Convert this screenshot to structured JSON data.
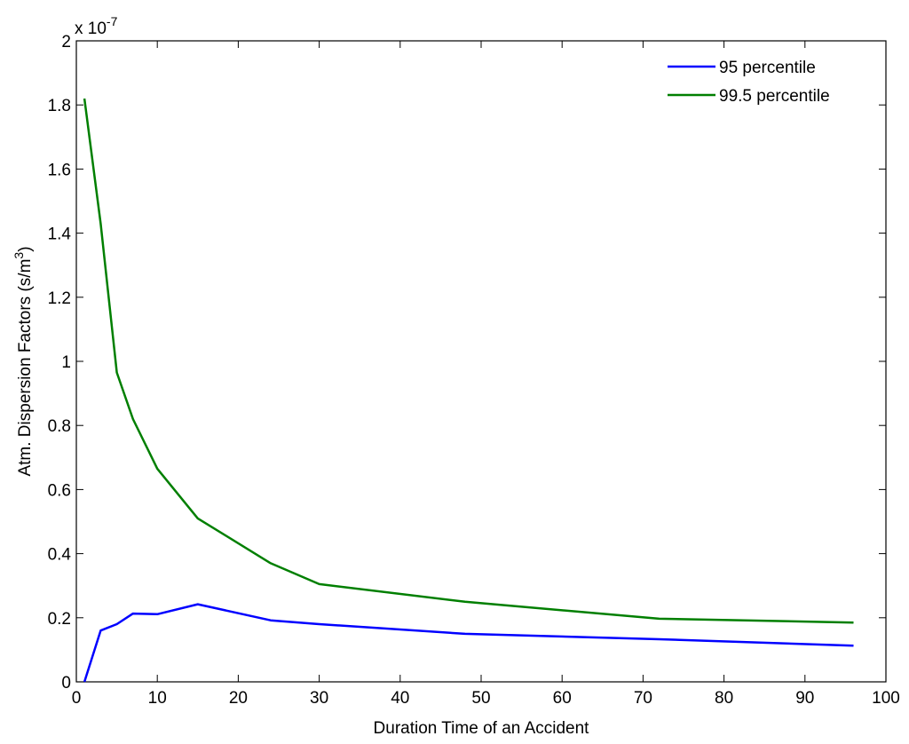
{
  "chart_data": {
    "type": "line",
    "title": "",
    "xlabel": "Duration Time of an Accident",
    "ylabel": "Atm. Dispersion Factors (s/m",
    "ylabel_superscript": "3",
    "ylabel_suffix": ")",
    "y_multiplier": {
      "base": "x 10",
      "exponent": "-7"
    },
    "xlim": [
      0,
      100
    ],
    "ylim": [
      0,
      2
    ],
    "xticks": [
      "0",
      "10",
      "20",
      "30",
      "40",
      "50",
      "60",
      "70",
      "80",
      "90",
      "100"
    ],
    "yticks": [
      "0",
      "0.2",
      "0.4",
      "0.6",
      "0.8",
      "1",
      "1.2",
      "1.4",
      "1.6",
      "1.8",
      "2"
    ],
    "grid": false,
    "legend_position": "top-right",
    "series": [
      {
        "name": "95 percentile",
        "color": "#0000ff",
        "x": [
          1,
          3,
          5,
          7,
          10,
          15,
          24,
          30,
          48,
          72,
          96
        ],
        "y": [
          0.0,
          0.16,
          0.18,
          0.213,
          0.211,
          0.242,
          0.192,
          0.18,
          0.15,
          0.133,
          0.113
        ]
      },
      {
        "name": "99.5 percentile",
        "color": "#007f00",
        "x": [
          1,
          3,
          5,
          7,
          10,
          15,
          24,
          30,
          48,
          72,
          96
        ],
        "y": [
          1.82,
          1.43,
          0.965,
          0.82,
          0.665,
          0.51,
          0.37,
          0.305,
          0.25,
          0.197,
          0.185
        ]
      }
    ]
  }
}
